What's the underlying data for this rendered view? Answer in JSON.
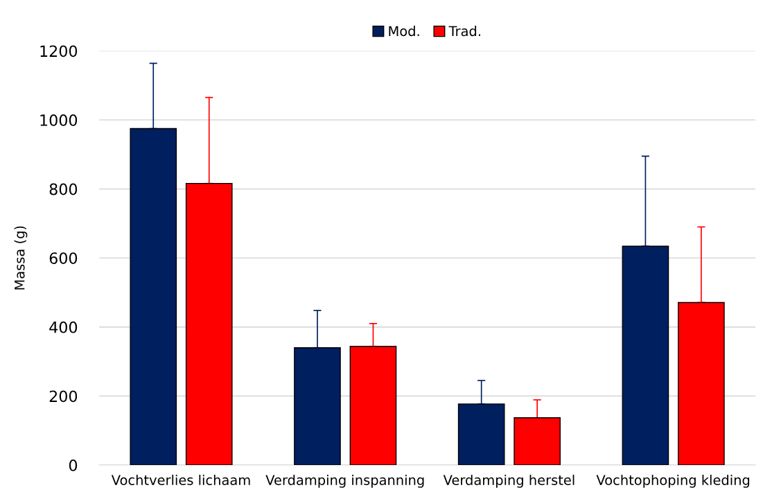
{
  "chart_data": {
    "type": "bar",
    "ylabel": "Massa (g)",
    "categories": [
      "Vochtverlies lichaam",
      "Verdamping inspanning",
      "Verdamping herstel",
      "Vochtophoping kleding"
    ],
    "series": [
      {
        "name": "Mod.",
        "color": "#001f5f",
        "values": [
          975,
          340,
          177,
          634
        ],
        "errors": [
          [
            975,
            1164
          ],
          [
            340,
            448
          ],
          [
            177,
            245
          ],
          [
            634,
            895
          ]
        ]
      },
      {
        "name": "Trad.",
        "color": "#ff0000",
        "values": [
          816,
          344,
          137,
          471
        ],
        "errors": [
          [
            816,
            1065
          ],
          [
            344,
            410
          ],
          [
            137,
            189
          ],
          [
            471,
            690
          ]
        ]
      }
    ],
    "ylim": [
      0,
      1200
    ],
    "yticks": [
      0,
      200,
      400,
      600,
      800,
      1000,
      1200
    ],
    "grid": "y",
    "legend": "top"
  }
}
